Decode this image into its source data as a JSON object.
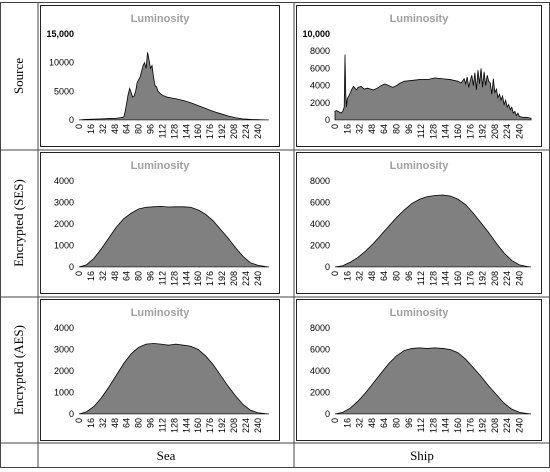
{
  "row_labels": [
    "Source",
    "Encrypted (SES)",
    "Encrypted (AES)"
  ],
  "col_labels": [
    "Sea",
    "Ship"
  ],
  "colors": {
    "fill": "#808080",
    "stroke": "#000000",
    "title": "#a0a0a0",
    "tick": "#000000"
  },
  "chart_data": [
    {
      "id": "source-sea",
      "type": "area",
      "title": "Luminosity",
      "ylim": [
        0,
        15000
      ],
      "yticks": [
        0,
        5000,
        10000,
        15000
      ],
      "yticklabels": [
        "0",
        "5000",
        "10000",
        "15,000"
      ],
      "ytick_bold": [
        false,
        false,
        false,
        true
      ],
      "xticks": [
        0,
        16,
        32,
        48,
        64,
        80,
        96,
        112,
        128,
        144,
        160,
        176,
        192,
        208,
        224,
        240
      ],
      "x": [
        0,
        5,
        10,
        20,
        30,
        40,
        50,
        55,
        60,
        62,
        64,
        66,
        68,
        70,
        72,
        74,
        76,
        78,
        80,
        82,
        84,
        86,
        88,
        90,
        92,
        94,
        96,
        98,
        100,
        102,
        104,
        106,
        110,
        114,
        118,
        122,
        130,
        140,
        150,
        160,
        170,
        180,
        190,
        200,
        210,
        220,
        230,
        240,
        250,
        255
      ],
      "values": [
        0,
        50,
        100,
        150,
        200,
        250,
        300,
        400,
        500,
        1500,
        3000,
        4500,
        5500,
        4800,
        4000,
        4200,
        5000,
        6500,
        7000,
        7500,
        8500,
        9500,
        10000,
        9000,
        11800,
        10500,
        9000,
        9500,
        7500,
        6000,
        5800,
        5000,
        4500,
        4200,
        4000,
        3900,
        3700,
        3400,
        3000,
        2500,
        2000,
        1500,
        1100,
        700,
        400,
        200,
        100,
        50,
        20,
        0
      ]
    },
    {
      "id": "source-ship",
      "type": "area",
      "title": "Luminosity",
      "ylim": [
        0,
        10000
      ],
      "yticks": [
        0,
        2000,
        4000,
        6000,
        8000,
        10000
      ],
      "yticklabels": [
        "0",
        "2000",
        "4000",
        "6000",
        "8000",
        "10,000"
      ],
      "ytick_bold": [
        false,
        false,
        false,
        false,
        false,
        true
      ],
      "xticks": [
        0,
        16,
        32,
        48,
        64,
        80,
        96,
        112,
        128,
        144,
        160,
        176,
        192,
        208,
        224,
        240
      ],
      "x": [
        0,
        2,
        4,
        6,
        8,
        10,
        12,
        13,
        14,
        15,
        16,
        18,
        20,
        22,
        24,
        26,
        28,
        30,
        34,
        38,
        42,
        46,
        50,
        55,
        60,
        65,
        70,
        75,
        80,
        85,
        90,
        100,
        110,
        120,
        130,
        140,
        150,
        160,
        164,
        168,
        170,
        172,
        174,
        176,
        178,
        180,
        182,
        184,
        186,
        188,
        190,
        192,
        194,
        196,
        198,
        200,
        202,
        204,
        206,
        208,
        210,
        212,
        214,
        216,
        218,
        220,
        222,
        224,
        226,
        228,
        230,
        232,
        234,
        236,
        238,
        240,
        245,
        250,
        255
      ],
      "values": [
        1000,
        1100,
        1000,
        900,
        800,
        1000,
        1500,
        7600,
        3000,
        1500,
        2500,
        2800,
        3200,
        3600,
        3900,
        3700,
        3500,
        3800,
        3900,
        3600,
        3700,
        3600,
        3500,
        3700,
        4000,
        4200,
        4000,
        3800,
        4000,
        4300,
        4500,
        4600,
        4700,
        4700,
        4900,
        4800,
        4700,
        4500,
        4300,
        4800,
        4200,
        5000,
        3800,
        4600,
        5200,
        4000,
        5500,
        3500,
        5800,
        4200,
        6000,
        3800,
        5600,
        4000,
        5200,
        4500,
        4300,
        3000,
        4800,
        3200,
        3600,
        2600,
        3000,
        2300,
        2800,
        1800,
        2300,
        1500,
        1800,
        1200,
        1500,
        800,
        1000,
        500,
        800,
        400,
        300,
        300,
        200
      ]
    },
    {
      "id": "ses-sea",
      "type": "area",
      "title": "Luminosity",
      "ylim": [
        0,
        4000
      ],
      "yticks": [
        0,
        1000,
        2000,
        3000,
        4000
      ],
      "yticklabels": [
        "0",
        "1000",
        "2000",
        "3000",
        "4000"
      ],
      "ytick_bold": [
        false,
        false,
        false,
        false,
        false
      ],
      "xticks": [
        0,
        16,
        32,
        48,
        64,
        80,
        96,
        112,
        128,
        144,
        160,
        176,
        192,
        208,
        224,
        240
      ],
      "x": [
        0,
        10,
        20,
        30,
        40,
        50,
        60,
        70,
        80,
        90,
        100,
        110,
        120,
        130,
        140,
        150,
        160,
        170,
        180,
        190,
        200,
        210,
        220,
        230,
        240,
        250,
        255
      ],
      "values": [
        0,
        100,
        400,
        850,
        1350,
        1850,
        2250,
        2500,
        2700,
        2780,
        2800,
        2820,
        2790,
        2800,
        2800,
        2780,
        2650,
        2450,
        2150,
        1750,
        1350,
        900,
        500,
        200,
        80,
        20,
        0
      ]
    },
    {
      "id": "ses-ship",
      "type": "area",
      "title": "Luminosity",
      "ylim": [
        0,
        8000
      ],
      "yticks": [
        0,
        2000,
        4000,
        6000,
        8000
      ],
      "yticklabels": [
        "0",
        "2000",
        "4000",
        "6000",
        "8000"
      ],
      "ytick_bold": [
        false,
        false,
        false,
        false,
        false
      ],
      "xticks": [
        0,
        16,
        32,
        48,
        64,
        80,
        96,
        112,
        128,
        144,
        160,
        176,
        192,
        208,
        224,
        240
      ],
      "x": [
        0,
        10,
        20,
        30,
        40,
        50,
        60,
        70,
        80,
        90,
        100,
        110,
        120,
        130,
        140,
        150,
        160,
        170,
        180,
        190,
        200,
        210,
        220,
        230,
        240,
        250,
        255
      ],
      "values": [
        0,
        120,
        450,
        900,
        1500,
        2200,
        3000,
        3800,
        4600,
        5300,
        5900,
        6300,
        6550,
        6650,
        6700,
        6600,
        6300,
        5800,
        5000,
        4100,
        3200,
        2200,
        1300,
        600,
        200,
        50,
        0
      ]
    },
    {
      "id": "aes-sea",
      "type": "area",
      "title": "Luminosity",
      "ylim": [
        0,
        4000
      ],
      "yticks": [
        0,
        1000,
        2000,
        3000,
        4000
      ],
      "yticklabels": [
        "0",
        "1000",
        "2000",
        "3000",
        "4000"
      ],
      "ytick_bold": [
        false,
        false,
        false,
        false,
        false
      ],
      "xticks": [
        0,
        16,
        32,
        48,
        64,
        80,
        96,
        112,
        128,
        144,
        160,
        176,
        192,
        208,
        224,
        240
      ],
      "x": [
        0,
        10,
        20,
        30,
        40,
        50,
        60,
        70,
        80,
        90,
        100,
        110,
        120,
        130,
        140,
        150,
        160,
        170,
        180,
        190,
        200,
        210,
        220,
        230,
        240,
        250,
        255
      ],
      "values": [
        0,
        100,
        350,
        750,
        1250,
        1800,
        2350,
        2800,
        3100,
        3250,
        3280,
        3250,
        3200,
        3250,
        3200,
        3150,
        3000,
        2700,
        2300,
        1800,
        1300,
        850,
        450,
        180,
        60,
        15,
        0
      ]
    },
    {
      "id": "aes-ship",
      "type": "area",
      "title": "Luminosity",
      "ylim": [
        0,
        8000
      ],
      "yticks": [
        0,
        2000,
        4000,
        6000,
        8000
      ],
      "yticklabels": [
        "0",
        "2000",
        "4000",
        "6000",
        "8000"
      ],
      "ytick_bold": [
        false,
        false,
        false,
        false,
        false
      ],
      "xticks": [
        0,
        16,
        32,
        48,
        64,
        80,
        96,
        112,
        128,
        144,
        160,
        176,
        192,
        208,
        224,
        240
      ],
      "x": [
        0,
        10,
        20,
        30,
        40,
        50,
        60,
        70,
        80,
        90,
        100,
        110,
        120,
        130,
        140,
        150,
        160,
        170,
        180,
        190,
        200,
        210,
        220,
        230,
        240,
        250,
        255
      ],
      "values": [
        0,
        150,
        550,
        1200,
        2000,
        2900,
        3800,
        4700,
        5400,
        5900,
        6100,
        6150,
        6100,
        6150,
        6100,
        6000,
        5700,
        5100,
        4300,
        3500,
        2600,
        1800,
        1000,
        450,
        150,
        40,
        0
      ]
    }
  ]
}
